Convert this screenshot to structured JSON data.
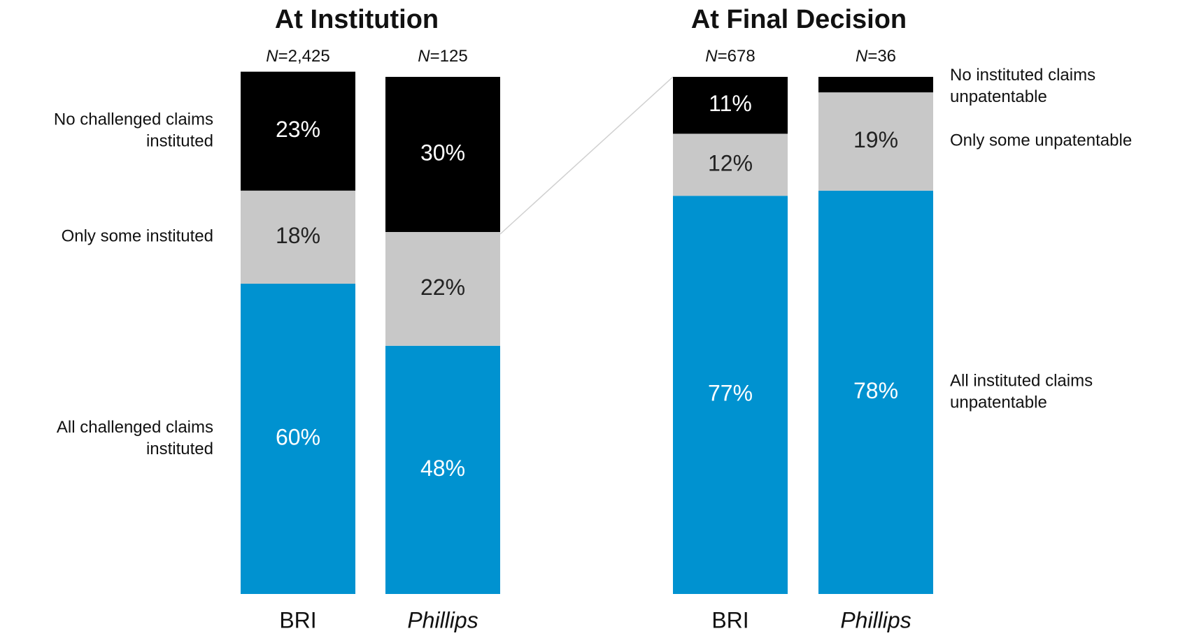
{
  "chart_data": [
    {
      "type": "stacked_bar",
      "title": "At Institution",
      "categories": [
        "BRI",
        "Phillips"
      ],
      "n_labels": [
        "N=2,425",
        "N=125"
      ],
      "ylim": [
        0,
        100
      ],
      "legend_position": "left",
      "series": [
        {
          "name": "No challenged claims instituted",
          "color": "#000000",
          "values": [
            23,
            30
          ],
          "value_labels": [
            "23%",
            "30%"
          ]
        },
        {
          "name": "Only some instituted",
          "color": "#c8c8c8",
          "values": [
            18,
            22
          ],
          "value_labels": [
            "18%",
            "22%"
          ]
        },
        {
          "name": "All challenged claims instituted",
          "color": "#0092d0",
          "values": [
            60,
            48
          ],
          "value_labels": [
            "60%",
            "48%"
          ]
        }
      ]
    },
    {
      "type": "stacked_bar",
      "title": "At Final Decision",
      "categories": [
        "BRI",
        "Phillips"
      ],
      "n_labels": [
        "N=678",
        "N=36"
      ],
      "ylim": [
        0,
        100
      ],
      "legend_position": "right",
      "series": [
        {
          "name": "No instituted claims unpatentable",
          "color": "#000000",
          "values": [
            11,
            3
          ],
          "value_labels": [
            "11%",
            null
          ]
        },
        {
          "name": "Only some unpatentable",
          "color": "#c8c8c8",
          "values": [
            12,
            19
          ],
          "value_labels": [
            "12%",
            "19%"
          ]
        },
        {
          "name": "All instituted claims unpatentable",
          "color": "#0092d0",
          "values": [
            77,
            78
          ],
          "value_labels": [
            "77%",
            "78%"
          ]
        }
      ]
    }
  ]
}
